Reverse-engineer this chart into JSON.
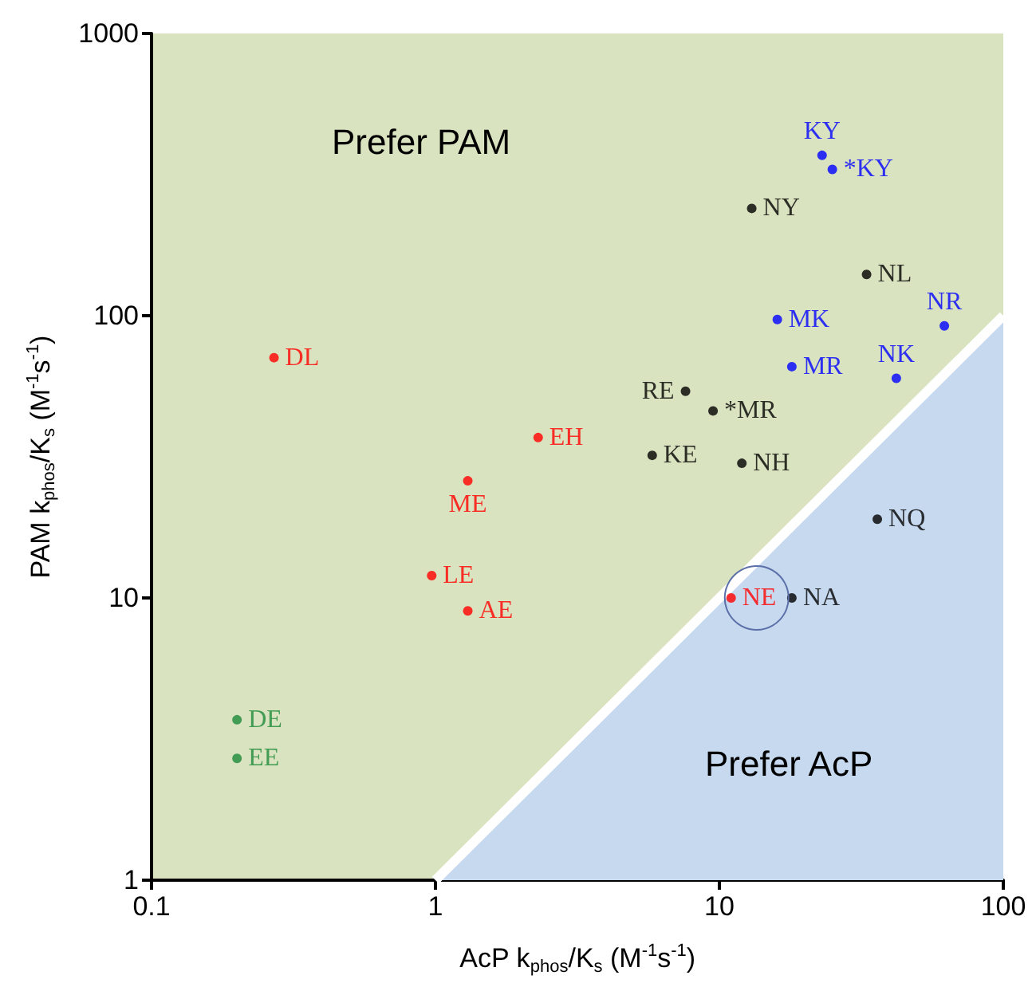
{
  "chart_data": {
    "type": "scatter",
    "xlabel": "AcP k$_{phos}$/K$_{s}$ (M$^{-1}$s$^{-1}$)",
    "ylabel": "PAM k$_{phos}$/K$_{s}$ (M$^{-1}$s$^{-1}$)",
    "log": "xy",
    "xlim": [
      0.1,
      100
    ],
    "ylim": [
      1,
      1000
    ],
    "xticks": [
      0.1,
      1,
      10,
      100
    ],
    "yticks": [
      1,
      10,
      100,
      1000
    ],
    "grid": false,
    "series": [
      {
        "type": "area",
        "color": "#c6d9ef",
        "x": [
          1,
          100
        ],
        "values": [
          1,
          100
        ]
      },
      {
        "color": "#000000",
        "x": [
          13,
          33,
          7.6,
          9.5,
          5.8,
          12,
          36,
          18
        ],
        "values": [
          240,
          140,
          54,
          46,
          32,
          30,
          19,
          10
        ],
        "value_labels": [
          "NY",
          "NL",
          "RE",
          "*MR",
          "KE",
          "NH",
          "NQ",
          "NA"
        ]
      },
      {
        "color": "#ff0000",
        "x": [
          0.27,
          2.3,
          1.3,
          0.97,
          1.3,
          11
        ],
        "values": [
          71,
          37,
          26,
          12,
          9,
          10
        ],
        "value_labels": [
          "DL",
          "EH",
          "ME",
          "LE",
          "AE",
          "NE"
        ]
      },
      {
        "color": "#0000ff",
        "x": [
          23,
          25,
          16,
          18,
          62,
          42
        ],
        "values": [
          370,
          330,
          97,
          66,
          92,
          60
        ],
        "value_labels": [
          "KY",
          "*KY",
          "MK",
          "MR",
          "NR",
          "NK"
        ]
      },
      {
        "color": "#1b8a3a",
        "x": [
          0.2,
          0.2
        ],
        "values": [
          3.7,
          2.7
        ],
        "value_labels": [
          "DE",
          "EE"
        ]
      }
    ],
    "annotations": [
      "Prefer PAM",
      "Prefer AcP"
    ]
  }
}
